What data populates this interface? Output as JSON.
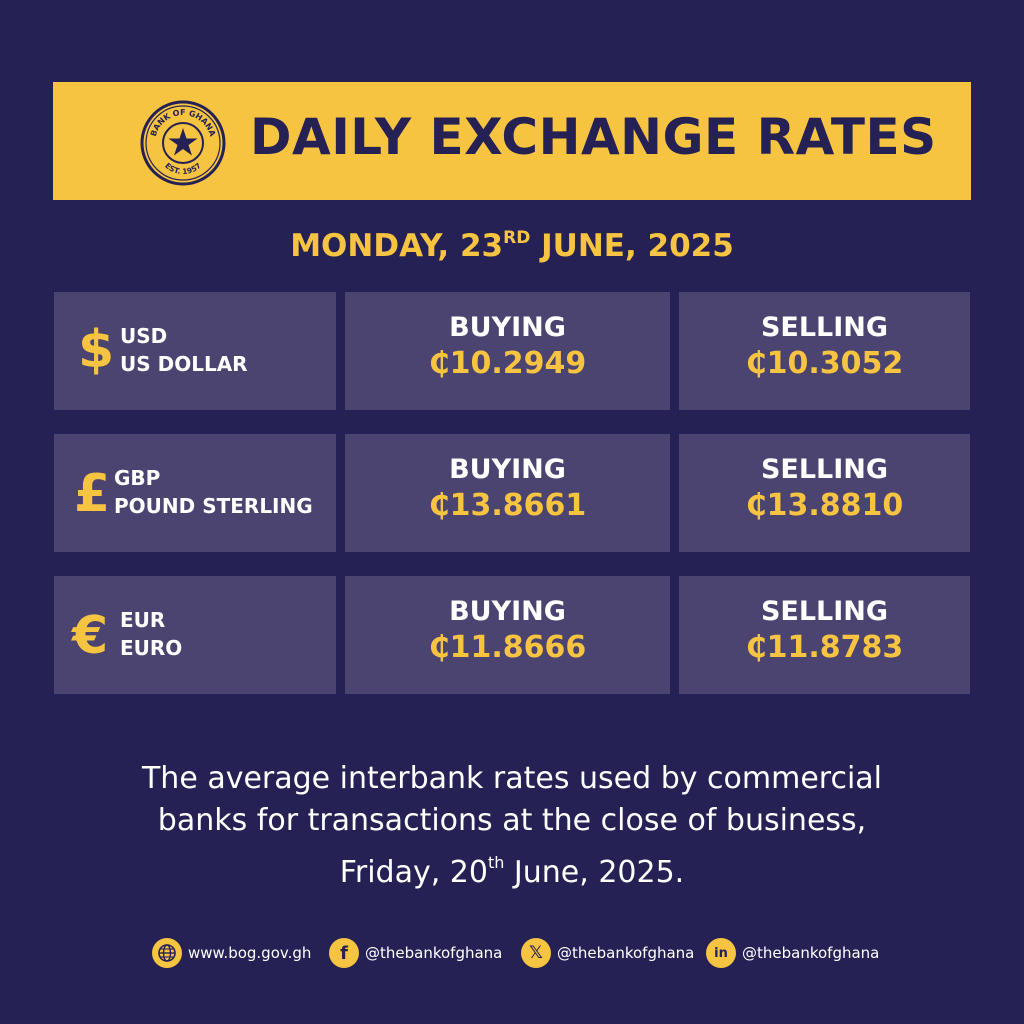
{
  "header": {
    "title": "DAILY EXCHANGE RATES",
    "seal_text_top": "BANK OF GHANA",
    "seal_text_bottom": "EST. 1957"
  },
  "date": {
    "prefix": "MONDAY, 23",
    "suffix_sup": "RD",
    "rest": " JUNE, 2025"
  },
  "rates": [
    {
      "symbol": "$",
      "code": "USD",
      "name": "US DOLLAR",
      "buying_label": "BUYING",
      "buying": "₵10.2949",
      "selling_label": "SELLING",
      "selling": "₵10.3052"
    },
    {
      "symbol": "£",
      "code": "GBP",
      "name": "POUND STERLING",
      "buying_label": "BUYING",
      "buying": "₵13.8661",
      "selling_label": "SELLING",
      "selling": "₵13.8810"
    },
    {
      "symbol": "€",
      "code": "EUR",
      "name": "EURO",
      "buying_label": "BUYING",
      "buying": "₵11.8666",
      "selling_label": "SELLING",
      "selling": "₵11.8783"
    }
  ],
  "footnote": {
    "line1": "The average interbank rates used by commercial",
    "line2": "banks for transactions at the close of business,",
    "line3_prefix": "Friday, 20",
    "line3_sup": "th",
    "line3_rest": " June, 2025."
  },
  "social": {
    "website": "www.bog.gov.gh",
    "facebook": "@thebankofghana",
    "x": "@thebankofghana",
    "linkedin": "@thebankofghana"
  },
  "colors": {
    "background": "#252154",
    "accent": "#f6c441",
    "cell": "#4c4470"
  }
}
